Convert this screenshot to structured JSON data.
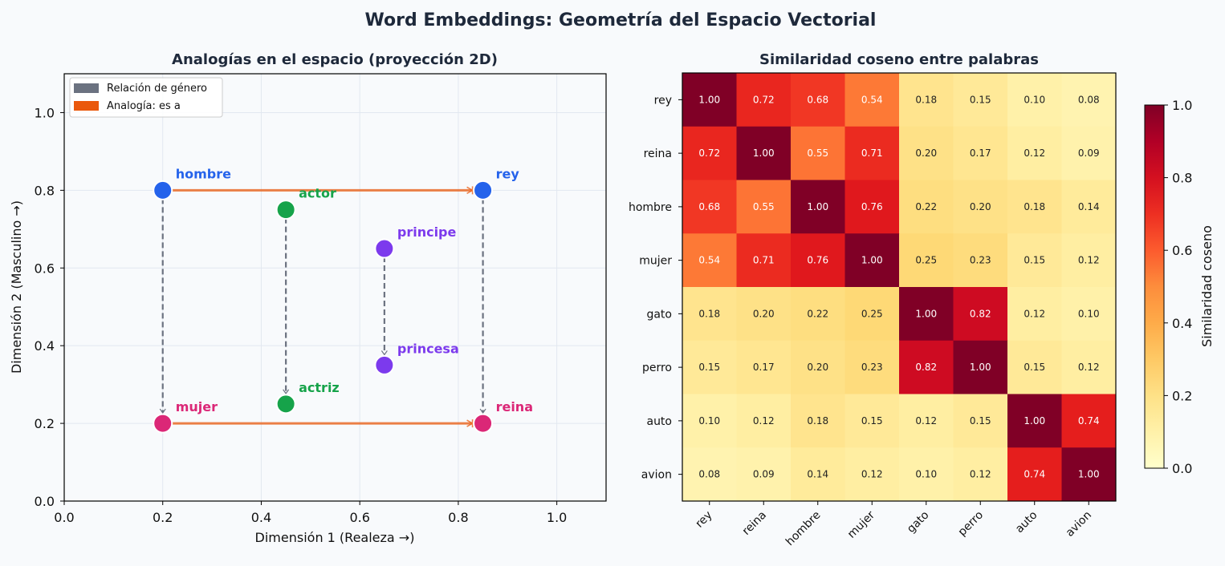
{
  "figure": {
    "suptitle": "Word Embeddings: Geometría del Espacio Vectorial"
  },
  "chart_data": [
    {
      "type": "scatter",
      "title": "Analogías en el espacio (proyección 2D)",
      "xlabel": "Dimensión 1 (Realeza →)",
      "ylabel": "Dimensión 2 (Masculino →)",
      "xlim": [
        0,
        1.1
      ],
      "ylim": [
        0,
        1.1
      ],
      "xticks": [
        "0.0",
        "0.2",
        "0.4",
        "0.6",
        "0.8",
        "1.0"
      ],
      "yticks": [
        "0.0",
        "0.2",
        "0.4",
        "0.6",
        "0.8",
        "1.0"
      ],
      "grid": true,
      "legend_position": "top-left",
      "legend": [
        {
          "label": "Relación de género",
          "color": "#6b7280"
        },
        {
          "label": "Analogía: es a",
          "color": "#ea580c"
        }
      ],
      "points": [
        {
          "word": "rey",
          "x": 0.85,
          "y": 0.8,
          "color": "#2563eb"
        },
        {
          "word": "reina",
          "x": 0.85,
          "y": 0.2,
          "color": "#db2777"
        },
        {
          "word": "hombre",
          "x": 0.2,
          "y": 0.8,
          "color": "#2563eb"
        },
        {
          "word": "mujer",
          "x": 0.2,
          "y": 0.2,
          "color": "#db2777"
        },
        {
          "word": "actor",
          "x": 0.45,
          "y": 0.75,
          "color": "#16a34a"
        },
        {
          "word": "actriz",
          "x": 0.45,
          "y": 0.25,
          "color": "#16a34a"
        },
        {
          "word": "principe",
          "x": 0.65,
          "y": 0.65,
          "color": "#7c3aed"
        },
        {
          "word": "princesa",
          "x": 0.65,
          "y": 0.35,
          "color": "#7c3aed"
        }
      ],
      "gender_arrows": [
        {
          "from": "hombre",
          "to": "mujer"
        },
        {
          "from": "actor",
          "to": "actriz"
        },
        {
          "from": "principe",
          "to": "princesa"
        },
        {
          "from": "rey",
          "to": "reina"
        }
      ],
      "analogy_arrows": [
        {
          "from": "hombre",
          "to": "rey"
        },
        {
          "from": "mujer",
          "to": "reina"
        }
      ]
    },
    {
      "type": "heatmap",
      "title": "Similaridad coseno entre palabras",
      "labels": [
        "rey",
        "reina",
        "hombre",
        "mujer",
        "gato",
        "perro",
        "auto",
        "avion"
      ],
      "matrix": [
        [
          1.0,
          0.72,
          0.68,
          0.54,
          0.18,
          0.15,
          0.1,
          0.08
        ],
        [
          0.72,
          1.0,
          0.55,
          0.71,
          0.2,
          0.17,
          0.12,
          0.09
        ],
        [
          0.68,
          0.55,
          1.0,
          0.76,
          0.22,
          0.2,
          0.18,
          0.14
        ],
        [
          0.54,
          0.71,
          0.76,
          1.0,
          0.25,
          0.23,
          0.15,
          0.12
        ],
        [
          0.18,
          0.2,
          0.22,
          0.25,
          1.0,
          0.82,
          0.12,
          0.1
        ],
        [
          0.15,
          0.17,
          0.2,
          0.23,
          0.82,
          1.0,
          0.15,
          0.12
        ],
        [
          0.1,
          0.12,
          0.18,
          0.15,
          0.12,
          0.15,
          1.0,
          0.74
        ],
        [
          0.08,
          0.09,
          0.14,
          0.12,
          0.1,
          0.12,
          0.74,
          1.0
        ]
      ],
      "colormap": "YlOrRd",
      "vmin": 0,
      "vmax": 1,
      "colorbar_label": "Similaridad coseno",
      "colorbar_ticks": [
        "0.0",
        "0.2",
        "0.4",
        "0.6",
        "0.8",
        "1.0"
      ]
    }
  ]
}
